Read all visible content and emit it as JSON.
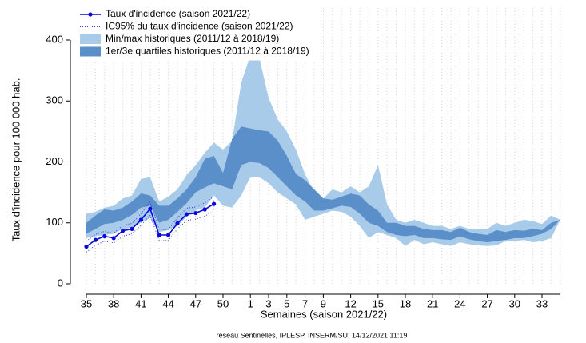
{
  "chart_data": {
    "type": "line",
    "y_label": "Taux d'incidence pour 100 000 hab.",
    "x_label": "Semaines (saison 2021/22)",
    "footer": "réseau Sentinelles, IPLESP, INSERM/SU, 14/12/2021 11:19",
    "categories": [
      35,
      null,
      null,
      38,
      null,
      null,
      41,
      null,
      null,
      44,
      null,
      null,
      47,
      null,
      null,
      50,
      null,
      null,
      1,
      null,
      3,
      null,
      5,
      null,
      7,
      null,
      9,
      null,
      null,
      12,
      null,
      null,
      15,
      null,
      null,
      18,
      null,
      null,
      21,
      null,
      null,
      24,
      null,
      null,
      27,
      null,
      null,
      30,
      null,
      null,
      33,
      null,
      null
    ],
    "ylim": [
      0,
      400
    ],
    "yticks": [
      0,
      100,
      200,
      300,
      400
    ],
    "grid": true,
    "series": [
      {
        "name": "Taux d'incidence (saison 2021/22)",
        "color": "#0a0adc",
        "values": [
          61,
          72,
          78,
          75,
          87,
          90,
          105,
          123,
          80,
          80,
          99,
          114,
          116,
          122,
          131,
          null,
          null,
          null,
          null,
          null,
          null,
          null,
          null,
          null,
          null,
          null,
          null,
          null,
          null,
          null,
          null,
          null,
          null,
          null,
          null,
          null,
          null,
          null,
          null,
          null,
          null,
          null,
          null,
          null,
          null,
          null,
          null,
          null,
          null,
          null,
          null,
          null,
          null
        ]
      },
      {
        "name": "IC95% du taux d'incidence (saison 2021/22)",
        "color": "#3a3ae0",
        "lower": [
          52,
          63,
          70,
          67,
          78,
          82,
          96,
          112,
          71,
          71,
          90,
          104,
          106,
          111,
          119,
          null,
          null,
          null,
          null,
          null,
          null,
          null,
          null,
          null,
          null,
          null,
          null,
          null,
          null,
          null,
          null,
          null,
          null,
          null,
          null,
          null,
          null,
          null,
          null,
          null,
          null,
          null,
          null,
          null,
          null,
          null,
          null,
          null,
          null,
          null,
          null,
          null,
          null
        ],
        "upper": [
          70,
          81,
          86,
          83,
          96,
          99,
          115,
          134,
          89,
          89,
          108,
          124,
          126,
          133,
          143,
          null,
          null,
          null,
          null,
          null,
          null,
          null,
          null,
          null,
          null,
          null,
          null,
          null,
          null,
          null,
          null,
          null,
          null,
          null,
          null,
          null,
          null,
          null,
          null,
          null,
          null,
          null,
          null,
          null,
          null,
          null,
          null,
          null,
          null,
          null,
          null,
          null,
          null
        ]
      },
      {
        "name": "Min/max historiques (2011/12 à 2018/19)",
        "color": "#a8cbea",
        "lower": [
          75,
          78,
          80,
          82,
          90,
          92,
          100,
          108,
          85,
          88,
          95,
          110,
          120,
          125,
          145,
          128,
          125,
          145,
          175,
          175,
          165,
          150,
          140,
          130,
          105,
          110,
          115,
          120,
          118,
          110,
          95,
          75,
          85,
          80,
          75,
          62,
          72,
          65,
          68,
          65,
          62,
          68,
          65,
          63,
          62,
          63,
          70,
          70,
          72,
          68,
          70,
          75,
          105
        ],
        "upper": [
          115,
          118,
          125,
          128,
          140,
          145,
          172,
          175,
          135,
          143,
          155,
          178,
          195,
          215,
          232,
          220,
          235,
          330,
          375,
          370,
          305,
          270,
          250,
          220,
          180,
          150,
          140,
          155,
          150,
          160,
          150,
          160,
          195,
          130,
          105,
          100,
          105,
          100,
          95,
          95,
          90,
          95,
          90,
          90,
          90,
          100,
          95,
          100,
          105,
          103,
          98,
          112,
          105
        ]
      },
      {
        "name": "1er/3e quartiles historiques (2011/12 à 2018/19)",
        "color": "#5b8fca",
        "lower": [
          82,
          90,
          98,
          100,
          105,
          113,
          125,
          128,
          100,
          105,
          118,
          132,
          150,
          158,
          165,
          160,
          155,
          195,
          200,
          198,
          190,
          175,
          160,
          145,
          135,
          120,
          120,
          124,
          128,
          126,
          115,
          100,
          95,
          85,
          80,
          78,
          80,
          75,
          75,
          73,
          72,
          78,
          73,
          70,
          68,
          70,
          72,
          75,
          75,
          78,
          82,
          90,
          105
        ],
        "upper": [
          100,
          112,
          122,
          120,
          125,
          135,
          148,
          145,
          128,
          128,
          140,
          155,
          175,
          205,
          210,
          182,
          238,
          258,
          255,
          252,
          250,
          235,
          210,
          180,
          170,
          155,
          140,
          138,
          143,
          148,
          145,
          130,
          120,
          100,
          100,
          95,
          95,
          90,
          88,
          88,
          85,
          92,
          85,
          82,
          80,
          88,
          85,
          88,
          87,
          90,
          88,
          100,
          105
        ]
      }
    ]
  }
}
